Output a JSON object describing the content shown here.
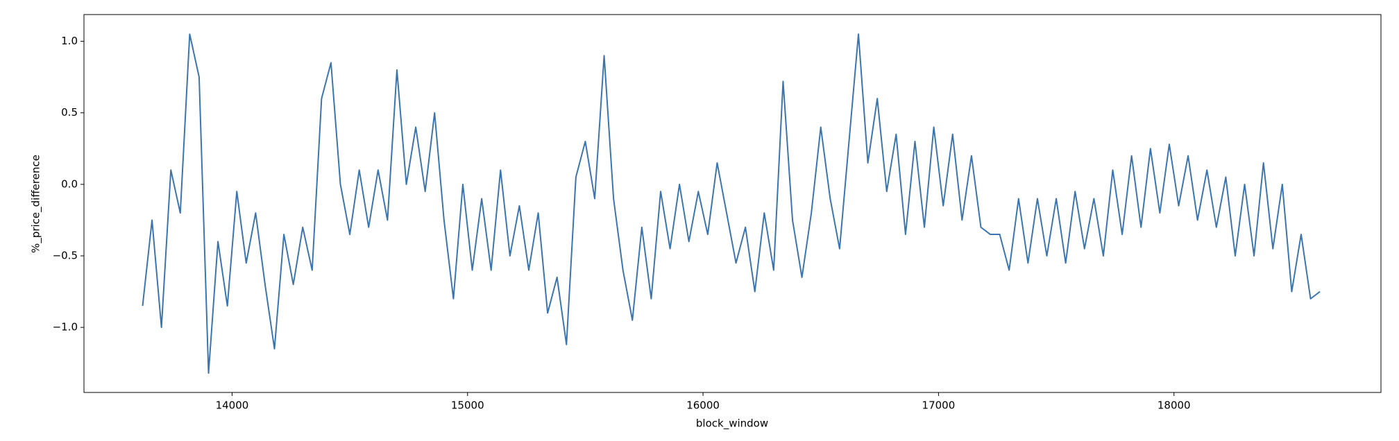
{
  "chart_data": {
    "type": "line",
    "xlabel": "block_window",
    "ylabel": "%_price_difference",
    "color": "#3b75af",
    "x": [
      13620,
      13660,
      13700,
      13740,
      13780,
      13820,
      13860,
      13900,
      13940,
      13980,
      14020,
      14060,
      14100,
      14140,
      14180,
      14220,
      14260,
      14300,
      14340,
      14380,
      14420,
      14460,
      14500,
      14540,
      14580,
      14620,
      14660,
      14700,
      14740,
      14780,
      14820,
      14860,
      14900,
      14940,
      14980,
      15020,
      15060,
      15100,
      15140,
      15180,
      15220,
      15260,
      15300,
      15340,
      15380,
      15420,
      15460,
      15500,
      15540,
      15580,
      15620,
      15660,
      15700,
      15740,
      15780,
      15820,
      15860,
      15900,
      15940,
      15980,
      16020,
      16060,
      16100,
      16140,
      16180,
      16220,
      16260,
      16300,
      16340,
      16380,
      16420,
      16460,
      16500,
      16540,
      16580,
      16620,
      16660,
      16700,
      16740,
      16780,
      16820,
      16860,
      16900,
      16940,
      16980,
      17020,
      17060,
      17100,
      17140,
      17180,
      17220,
      17260,
      17300,
      17340,
      17380,
      17420,
      17460,
      17500,
      17540,
      17580,
      17620,
      17660,
      17700,
      17740,
      17780,
      17820,
      17860,
      17900,
      17940,
      17980,
      18020,
      18060,
      18100,
      18140,
      18180,
      18220,
      18260,
      18300,
      18340,
      18380,
      18420,
      18460,
      18500,
      18540,
      18580,
      18620
    ],
    "values": [
      -0.85,
      -0.25,
      -1.0,
      0.1,
      -0.2,
      1.05,
      0.75,
      -1.32,
      -0.4,
      -0.85,
      -0.05,
      -0.55,
      -0.2,
      -0.7,
      -1.15,
      -0.35,
      -0.7,
      -0.3,
      -0.6,
      0.6,
      0.85,
      0.0,
      -0.35,
      0.1,
      -0.3,
      0.1,
      -0.25,
      0.8,
      0.0,
      0.4,
      -0.05,
      0.5,
      -0.25,
      -0.8,
      0.0,
      -0.6,
      -0.1,
      -0.6,
      0.1,
      -0.5,
      -0.15,
      -0.6,
      -0.2,
      -0.9,
      -0.65,
      -1.12,
      0.05,
      0.3,
      -0.1,
      0.9,
      -0.1,
      -0.6,
      -0.95,
      -0.3,
      -0.8,
      -0.05,
      -0.45,
      0.0,
      -0.4,
      -0.05,
      -0.35,
      0.15,
      -0.2,
      -0.55,
      -0.3,
      -0.75,
      -0.2,
      -0.6,
      0.72,
      -0.25,
      -0.65,
      -0.2,
      0.4,
      -0.1,
      -0.45,
      0.3,
      1.05,
      0.15,
      0.6,
      -0.05,
      0.35,
      -0.35,
      0.3,
      -0.3,
      0.4,
      -0.15,
      0.35,
      -0.25,
      0.2,
      -0.3,
      -0.35,
      -0.35,
      -0.6,
      -0.1,
      -0.55,
      -0.1,
      -0.5,
      -0.1,
      -0.55,
      -0.05,
      -0.45,
      -0.1,
      -0.5,
      0.1,
      -0.35,
      0.2,
      -0.3,
      0.25,
      -0.2,
      0.28,
      -0.15,
      0.2,
      -0.25,
      0.1,
      -0.3,
      0.05,
      -0.5,
      0.0,
      -0.5,
      0.15,
      -0.45,
      0.0,
      -0.75,
      -0.35,
      -0.8,
      -0.75
    ],
    "xlim": [
      13371,
      18879
    ],
    "ylim": [
      -1.455,
      1.187
    ],
    "xticks": [
      14000,
      15000,
      16000,
      17000,
      18000
    ],
    "yticks": [
      {
        "value": 1.0,
        "label": "1.0"
      },
      {
        "value": 0.5,
        "label": "0.5"
      },
      {
        "value": 0.0,
        "label": "0.0"
      },
      {
        "value": -0.5,
        "label": "−0.5"
      },
      {
        "value": -1.0,
        "label": "−1.0"
      }
    ]
  }
}
